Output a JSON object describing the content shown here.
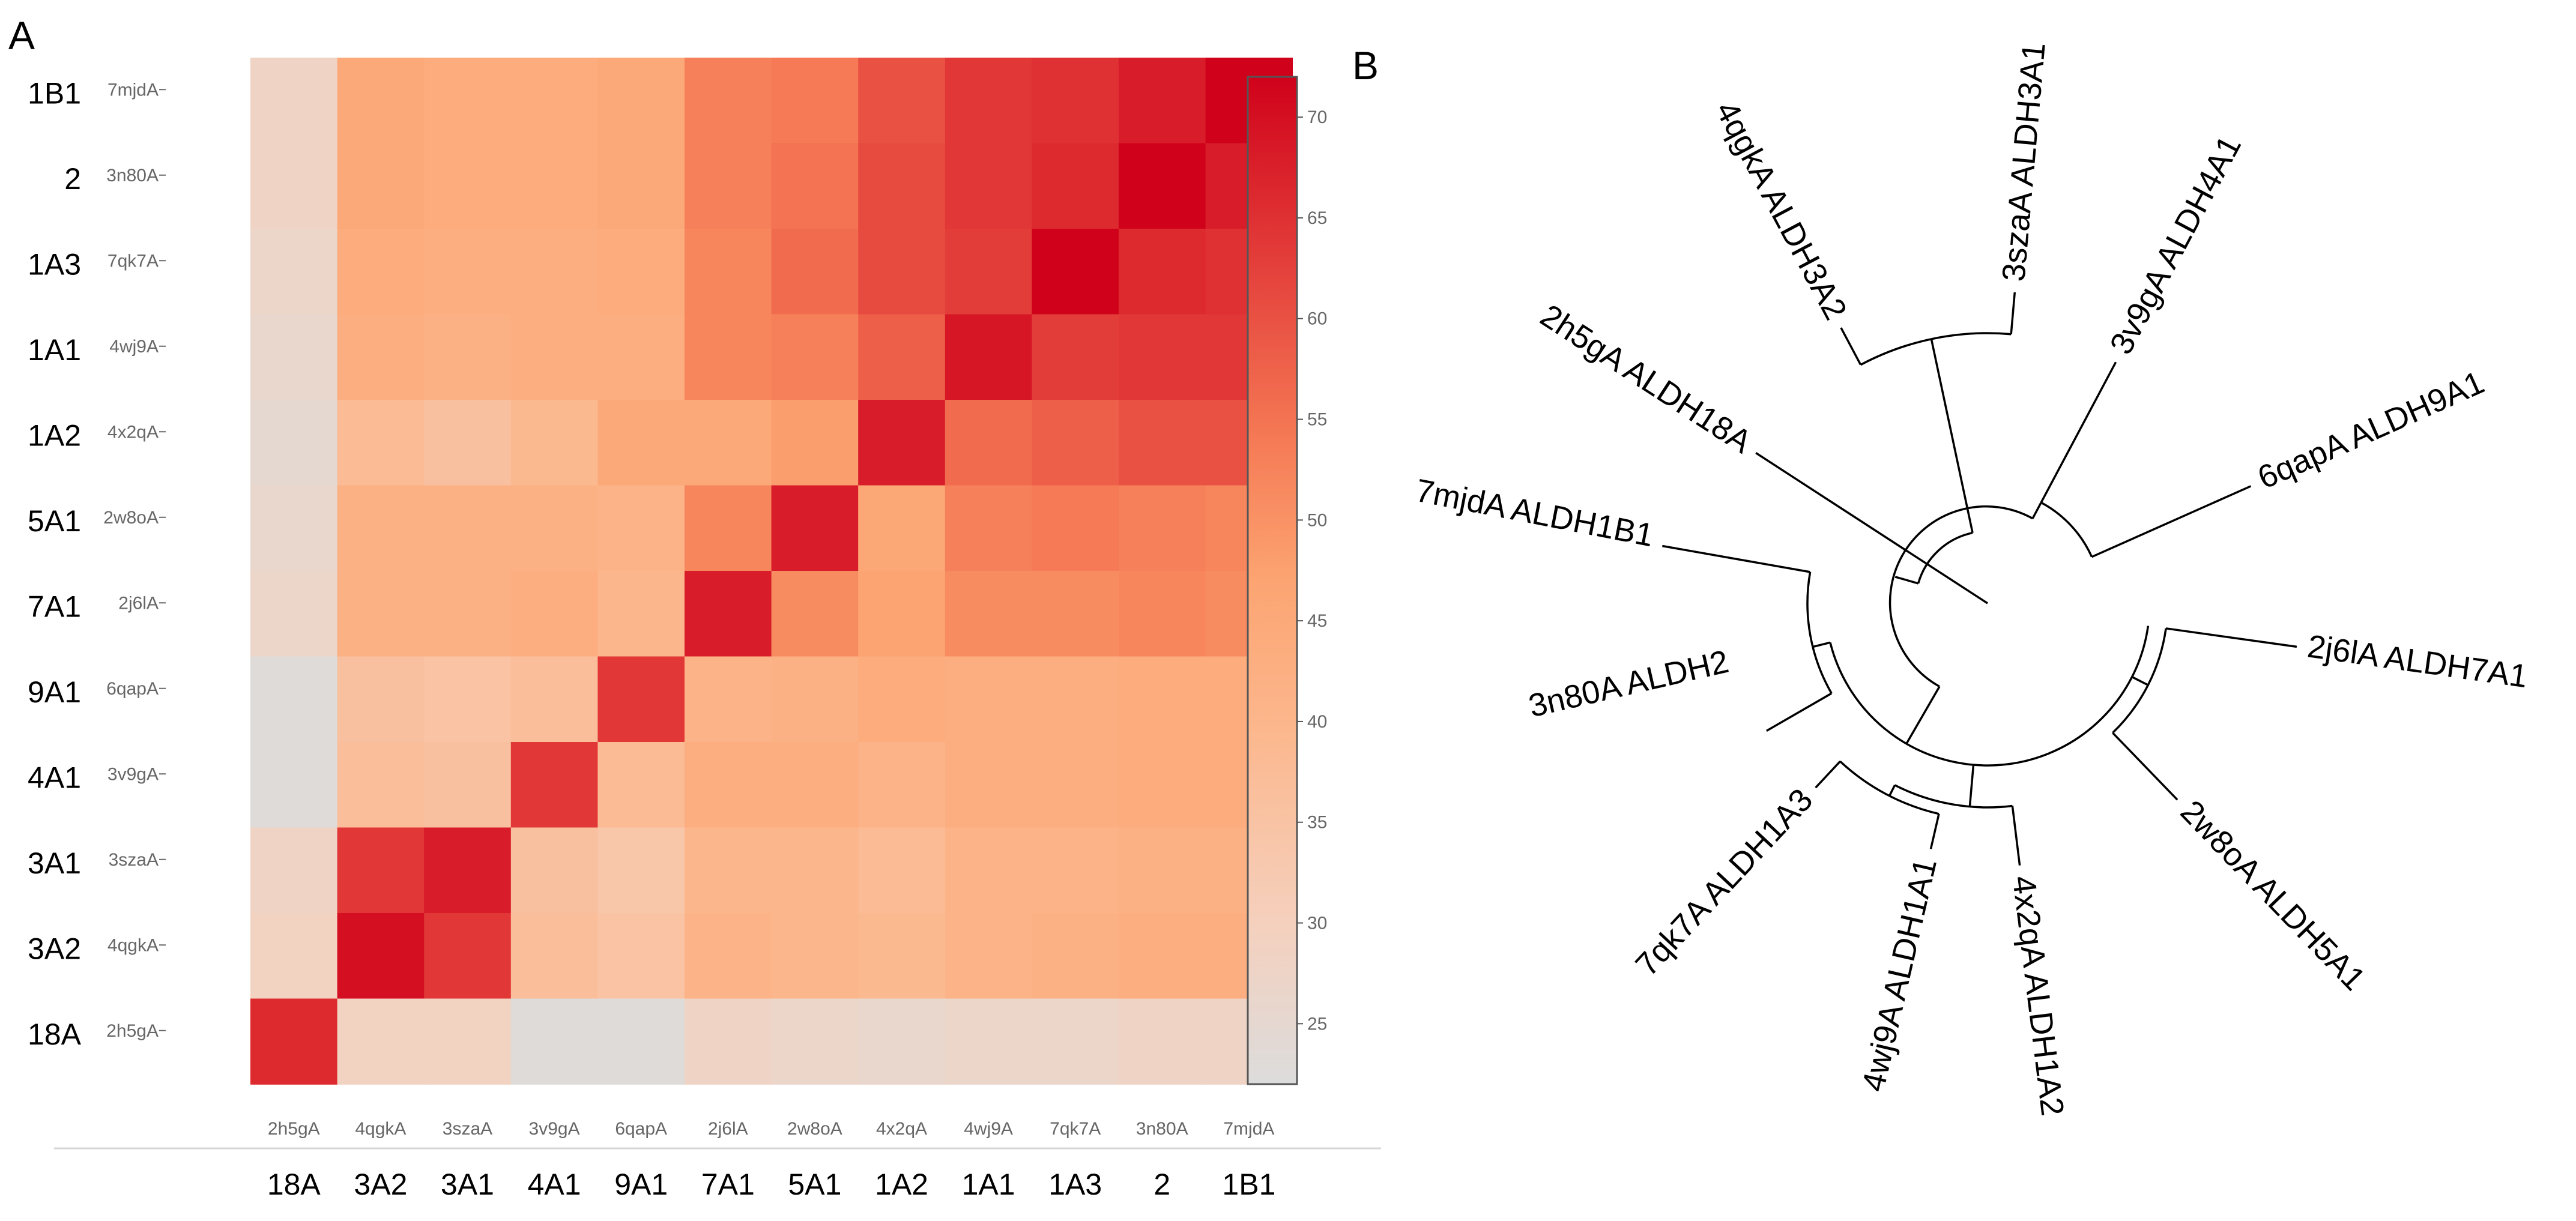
{
  "panels": {
    "a_label": "A",
    "b_label": "B"
  },
  "chart_data": [
    {
      "type": "heatmap",
      "title": "",
      "row_labels_top_to_bottom": [
        "1B1",
        "2",
        "1A3",
        "1A1",
        "1A2",
        "5A1",
        "7A1",
        "9A1",
        "4A1",
        "3A1",
        "3A2",
        "18A"
      ],
      "row_codes_top_to_bottom": [
        "7mjdA",
        "3n80A",
        "7qk7A",
        "4wj9A",
        "4x2qA",
        "2w8oA",
        "2j6lA",
        "6qapA",
        "3v9gA",
        "3szaA",
        "4qgkA",
        "2h5gA"
      ],
      "col_labels": [
        "18A",
        "3A2",
        "3A1",
        "4A1",
        "9A1",
        "7A1",
        "5A1",
        "1A2",
        "1A1",
        "1A3",
        "2",
        "1B1"
      ],
      "col_codes": [
        "2h5gA",
        "4qgkA",
        "3szaA",
        "3v9gA",
        "6qapA",
        "2j6lA",
        "2w8oA",
        "4x2qA",
        "4wj9A",
        "7qk7A",
        "3n80A",
        "7mjdA"
      ],
      "values": [
        [
          28,
          45,
          44,
          44,
          45,
          53,
          54,
          60,
          64,
          65,
          68,
          72
        ],
        [
          28,
          45,
          44,
          44,
          45,
          53,
          55,
          61,
          64,
          66,
          72,
          68
        ],
        [
          27,
          44,
          43,
          43,
          44,
          52,
          56,
          61,
          63,
          72,
          66,
          65
        ],
        [
          26,
          43,
          42,
          43,
          43,
          52,
          53,
          58,
          69,
          63,
          64,
          64
        ],
        [
          25,
          38,
          36,
          39,
          45,
          45,
          48,
          68,
          56,
          58,
          60,
          60
        ],
        [
          26,
          42,
          42,
          42,
          41,
          52,
          68,
          46,
          53,
          54,
          53,
          52
        ],
        [
          27,
          42,
          42,
          43,
          40,
          68,
          51,
          47,
          51,
          51,
          52,
          51
        ],
        [
          23,
          36,
          35,
          37,
          64,
          41,
          42,
          44,
          43,
          43,
          44,
          44
        ],
        [
          23,
          37,
          36,
          64,
          38,
          43,
          43,
          41,
          43,
          43,
          44,
          44
        ],
        [
          28,
          64,
          68,
          36,
          34,
          40,
          40,
          38,
          41,
          41,
          42,
          42
        ],
        [
          29,
          70,
          64,
          37,
          35,
          41,
          40,
          39,
          41,
          42,
          43,
          43
        ],
        [
          66,
          29,
          29,
          23,
          23,
          28,
          27,
          26,
          27,
          27,
          28,
          28
        ]
      ],
      "colorbar": {
        "min": 22,
        "max": 72,
        "ticks": [
          25,
          30,
          35,
          40,
          45,
          50,
          55,
          60,
          65,
          70
        ]
      },
      "colors": {
        "low": "#dcdcdc",
        "mid": "#fca472",
        "high": "#d0021b"
      }
    },
    {
      "type": "tree",
      "title": "",
      "layout": "circular",
      "leaves": [
        "3szaA ALDH3A1",
        "3v9gA ALDH4A1",
        "6qapA ALDH9A1",
        "2j6lA ALDH7A1",
        "2w8oA ALDH5A1",
        "4x2qA ALDH1A2",
        "4wj9A ALDH1A1",
        "7qk7A ALDH1A3",
        "3n80A ALDH2",
        "7mjdA ALDH1B1",
        "2h5gA ALDH18A",
        "4qgkA ALDH3A2"
      ]
    }
  ]
}
